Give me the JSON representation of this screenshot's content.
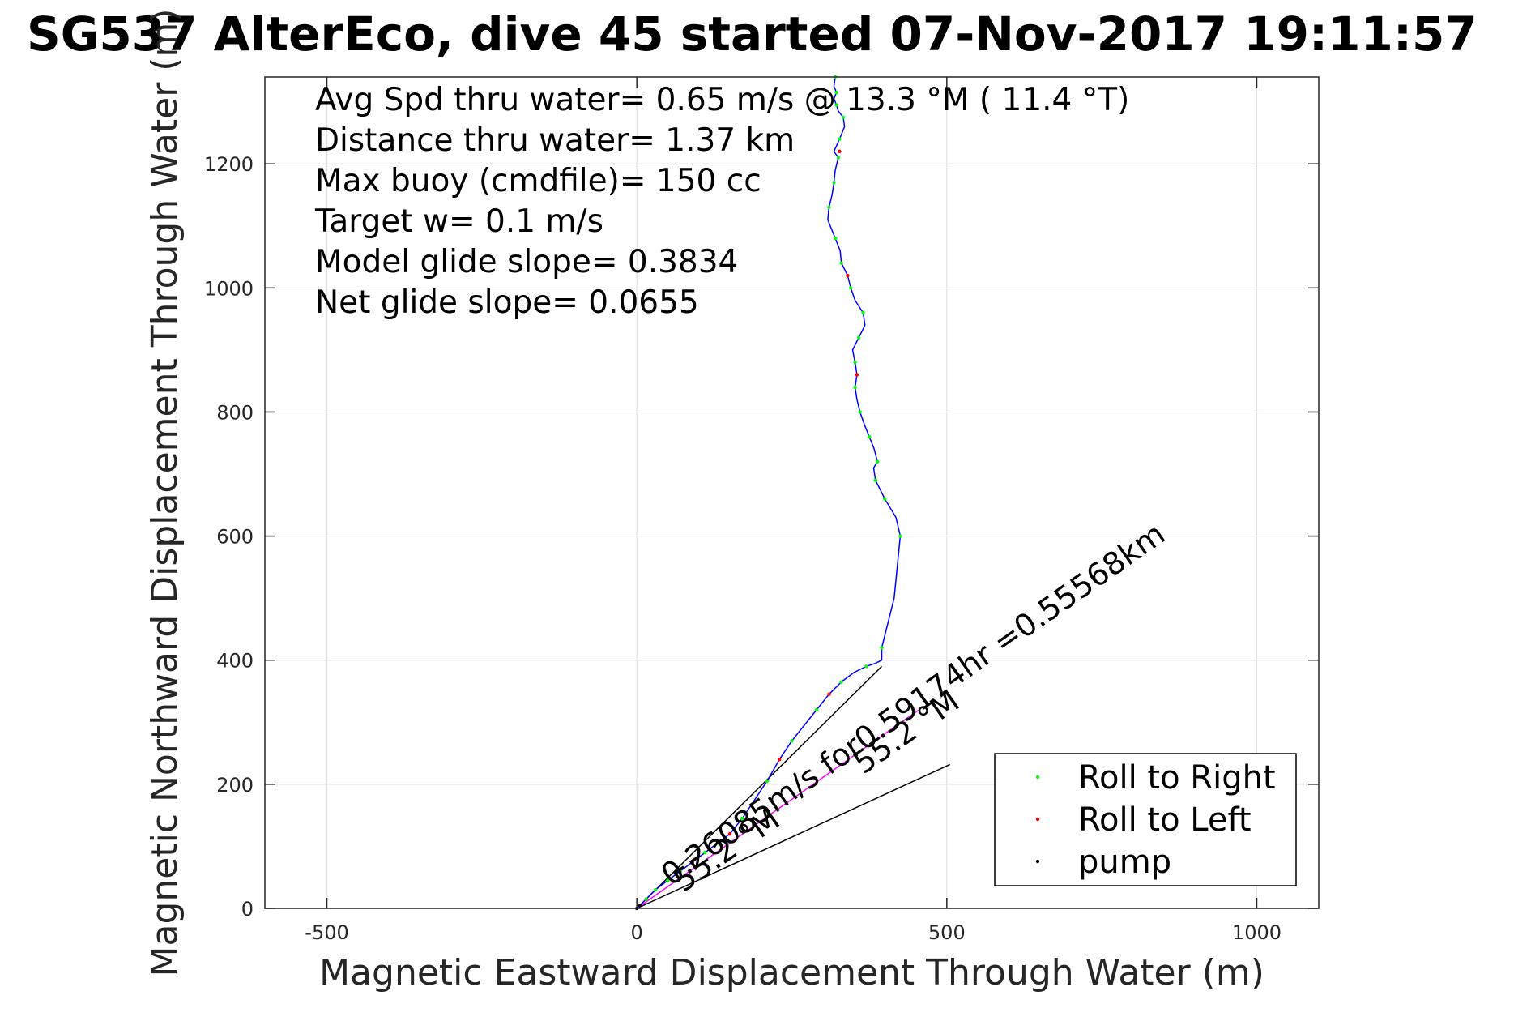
{
  "chart_data": {
    "type": "line",
    "title": "SG537 AlterEco, dive 45 started 07-Nov-2017 19:11:57",
    "xlabel": "Magnetic Eastward Displacement Through Water (m)",
    "ylabel": "Magnetic Northward Displacement Through Water (m)",
    "xlim": [
      -600,
      1100
    ],
    "ylim": [
      0,
      1340
    ],
    "xticks": [
      -500,
      0,
      500,
      1000
    ],
    "xtick_labels": [
      "-500",
      "0",
      "500",
      "1000"
    ],
    "yticks": [
      0,
      200,
      400,
      600,
      800,
      1000,
      1200
    ],
    "ytick_labels": [
      "0",
      "200",
      "400",
      "600",
      "800",
      "1000",
      "1200"
    ],
    "grid": true,
    "legend_position": "bottom-right",
    "colors": {
      "track": "#0000ff",
      "roll_right": "#00ff00",
      "roll_left": "#ff0000",
      "pump": "#000000",
      "current": "#ff00ff",
      "grid": "#e1e1e1",
      "axes": "#262626"
    },
    "stats": [
      "Avg Spd thru water=  0.65 m/s @  13.3 °M ( 11.4 °T)",
      "Distance thru water=  1.37 km",
      "Max buoy (cmdfile)= 150 cc",
      "Target w= 0.1 m/s",
      "Model glide slope= 0.3834",
      "Net glide slope= 0.0655"
    ],
    "series": [
      {
        "name": "track",
        "x": [
          0,
          15,
          30,
          50,
          70,
          90,
          110,
          130,
          150,
          170,
          190,
          210,
          230,
          250,
          270,
          290,
          310,
          330,
          350,
          370,
          385,
          395,
          395,
          415,
          425,
          418,
          400,
          385,
          382,
          388,
          383,
          375,
          367,
          360,
          355,
          352,
          355,
          352,
          348,
          358,
          368,
          365,
          352,
          345,
          340,
          330,
          328,
          320,
          308,
          310,
          315,
          318,
          320,
          325,
          318,
          327,
          335,
          333,
          325,
          322,
          318,
          322,
          318,
          320
        ],
        "y": [
          0,
          15,
          30,
          45,
          60,
          75,
          90,
          105,
          120,
          145,
          175,
          205,
          240,
          270,
          295,
          320,
          345,
          365,
          380,
          390,
          395,
          400,
          420,
          500,
          600,
          630,
          660,
          690,
          710,
          720,
          740,
          760,
          780,
          800,
          820,
          840,
          860,
          880,
          900,
          920,
          940,
          960,
          980,
          1000,
          1020,
          1040,
          1060,
          1080,
          1110,
          1130,
          1150,
          1170,
          1190,
          1210,
          1220,
          1240,
          1260,
          1275,
          1285,
          1295,
          1305,
          1315,
          1325,
          1340
        ]
      },
      {
        "name": "Roll to Right",
        "x": [
          15,
          30,
          50,
          70,
          110,
          130,
          170,
          210,
          250,
          290,
          330,
          370,
          395,
          425,
          400,
          385,
          388,
          375,
          360,
          352,
          352,
          358,
          365,
          345,
          330,
          320,
          310,
          318,
          325,
          327,
          333,
          322,
          322,
          320
        ],
        "y": [
          15,
          30,
          45,
          60,
          90,
          105,
          145,
          205,
          270,
          320,
          365,
          390,
          420,
          600,
          660,
          690,
          720,
          760,
          800,
          840,
          880,
          920,
          960,
          1000,
          1040,
          1080,
          1130,
          1170,
          1210,
          1240,
          1275,
          1295,
          1315,
          1340
        ]
      },
      {
        "name": "Roll to Left",
        "x": [
          90,
          150,
          230,
          310,
          355,
          340,
          327
        ],
        "y": [
          75,
          120,
          240,
          345,
          860,
          1020,
          1220
        ]
      },
      {
        "name": "pump",
        "x": [
          0,
          5
        ],
        "y": [
          0,
          5
        ]
      }
    ],
    "annotations": [
      {
        "kind": "sector_line",
        "x": [
          0,
          395
        ],
        "y": [
          0,
          390
        ]
      },
      {
        "kind": "sector_line",
        "x": [
          0,
          505
        ],
        "y": [
          0,
          232
        ]
      },
      {
        "kind": "current_vector",
        "x": [
          0,
          455
        ],
        "y": [
          0,
          320
        ]
      },
      {
        "kind": "label",
        "text": "0.26085m/s for0.59174hr =0.55568km",
        "x": 55,
        "y": 35,
        "angle": -35
      },
      {
        "kind": "label",
        "text": "55.2 °M",
        "x": 75,
        "y": 25,
        "angle": -35
      },
      {
        "kind": "label",
        "text": "55.2 °M",
        "x": 365,
        "y": 215,
        "angle": -35
      }
    ],
    "legend": [
      "Roll to Right",
      "Roll to Left",
      "pump"
    ]
  }
}
